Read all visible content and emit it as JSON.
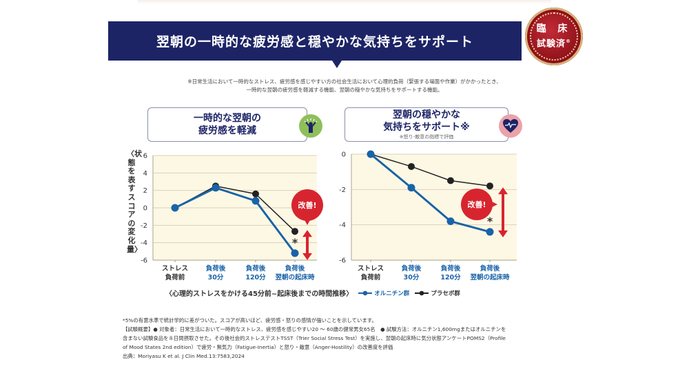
{
  "header": {
    "title": "翌朝の一時的な疲労感と穏やかな気持ちをサポート",
    "seal_line1": "臨 床",
    "seal_line2": "試験済",
    "seal_mark": "®"
  },
  "note": {
    "line1": "※日常生活において一時的なストレス、疲労感を感じやすい方の社会生活において心理的負荷（緊張する場面や作業）がかかったとき、",
    "line2": "一時的な翌朝の疲労感を軽減する機能、翌朝の穏やかな気持ちをサポートする機能。"
  },
  "cards": [
    {
      "line1": "一時的な翌朝の",
      "line2": "疲労感を軽減",
      "sub": "",
      "icon": "person-cheering-icon",
      "icon_bg": "#8fbf5a"
    },
    {
      "line1": "翌朝の穏やかな",
      "line2": "気持ちをサポート※",
      "sub": "※怒り-敵意の指標で評価",
      "icon": "heart-pulse-icon",
      "icon_bg": "#eba2a8"
    }
  ],
  "y_axis_label": "〈状態を表すスコアの変化量〉",
  "improve_label": "改善!",
  "significance_mark": "*",
  "legend": {
    "caption": "〈心理的ストレスをかける45分前~起床後までの時間推移〉",
    "ornithine": "オルニチン群",
    "placebo": "プラセボ群"
  },
  "colors": {
    "ornithine": "#1a63a8",
    "placebo": "#222222",
    "plot_bg": "#fdf8e4",
    "grid": "#d9d2b8",
    "accent_red": "#d7252f",
    "navy": "#1d2466"
  },
  "chart_data": [
    {
      "type": "line",
      "title": "一時的な翌朝の疲労感を軽減",
      "categories": [
        {
          "line1": "ストレス",
          "line2": "負荷前",
          "highlight": false
        },
        {
          "line1": "負荷後",
          "line2": "30分",
          "highlight": true
        },
        {
          "line1": "負荷後",
          "line2": "120分",
          "highlight": true
        },
        {
          "line1": "負荷後",
          "line2": "翌朝の起床時",
          "highlight": true
        }
      ],
      "series": [
        {
          "name": "プラセボ群",
          "values": [
            0,
            2.5,
            1.6,
            -2.7
          ]
        },
        {
          "name": "オルニチン群",
          "values": [
            0,
            2.3,
            0.8,
            -5.2
          ]
        }
      ],
      "ylim": [
        -6,
        6
      ],
      "yticks": [
        6,
        4,
        2,
        0,
        -2,
        -4,
        -6
      ],
      "ylabel": "〈状態を表すスコアの変化量〉",
      "grid": true,
      "annotation": "改善!"
    },
    {
      "type": "line",
      "title": "翌朝の穏やかな気持ちをサポート",
      "categories": [
        {
          "line1": "ストレス",
          "line2": "負荷前",
          "highlight": false
        },
        {
          "line1": "負荷後",
          "line2": "30分",
          "highlight": true
        },
        {
          "line1": "負荷後",
          "line2": "120分",
          "highlight": true
        },
        {
          "line1": "負荷後",
          "line2": "翌朝の起床時",
          "highlight": true
        }
      ],
      "series": [
        {
          "name": "プラセボ群",
          "values": [
            0,
            -0.7,
            -1.5,
            -1.8
          ]
        },
        {
          "name": "オルニチン群",
          "values": [
            0,
            -1.9,
            -3.8,
            -4.4
          ]
        }
      ],
      "ylim": [
        -6,
        0
      ],
      "yticks": [
        0,
        -2,
        -4,
        -6
      ],
      "grid": true,
      "annotation": "改善!"
    }
  ],
  "footer": {
    "line1": "*5%の有意水準で統計学的に差がついた。スコアが高いほど、疲労感・怒りの感情が強いことを示しています。",
    "line2": "【試験概要】● 対象者：日常生活において一時的なストレス、疲労感を感じやすい20 ～ 60歳の健常男女65名　● 試験方法：オルニチン1,600mgまたはオルニチンを",
    "line3": "含まない試験食品を８日間摂取させた。その後社会的ストレステストTSST（Trier Social Stress Test）を実施し、翌朝の起床時に気分状態アンケートPOMS2（Profile",
    "line4": "of Mood States 2nd edition）で疲労・無気力（Fatigue-Inertia）と怒り・敵意（Anger-Hostility）の改善度を評価",
    "line5": "出典：Moriyasu K et al. J Clin Med.13:7583,2024"
  }
}
